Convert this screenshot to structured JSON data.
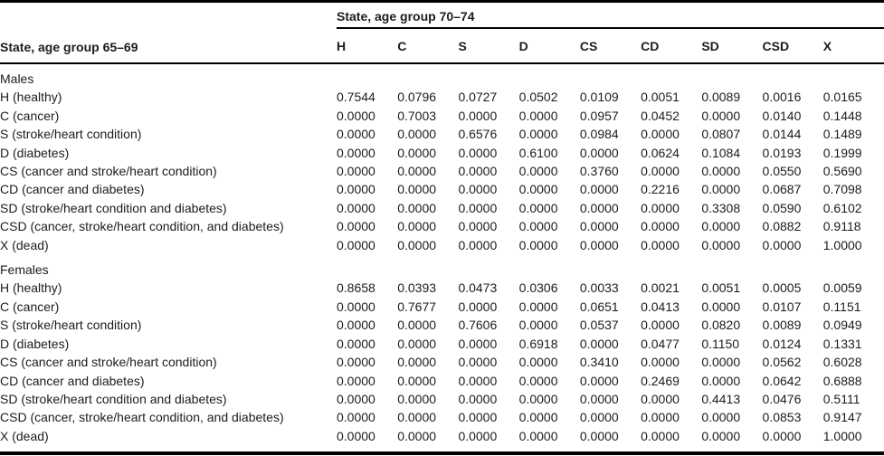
{
  "chart_data": {
    "type": "table",
    "row_group_header": "State, age group 65–69",
    "col_group_header": "State, age group 70–74",
    "columns": [
      "H",
      "C",
      "S",
      "D",
      "CS",
      "CD",
      "SD",
      "CSD",
      "X"
    ],
    "sections": [
      {
        "label": "Males",
        "rows": [
          {
            "label": "H (healthy)",
            "values": [
              "0.7544",
              "0.0796",
              "0.0727",
              "0.0502",
              "0.0109",
              "0.0051",
              "0.0089",
              "0.0016",
              "0.0165"
            ]
          },
          {
            "label": "C (cancer)",
            "values": [
              "0.0000",
              "0.7003",
              "0.0000",
              "0.0000",
              "0.0957",
              "0.0452",
              "0.0000",
              "0.0140",
              "0.1448"
            ]
          },
          {
            "label": "S (stroke/heart condition)",
            "values": [
              "0.0000",
              "0.0000",
              "0.6576",
              "0.0000",
              "0.0984",
              "0.0000",
              "0.0807",
              "0.0144",
              "0.1489"
            ]
          },
          {
            "label": "D (diabetes)",
            "values": [
              "0.0000",
              "0.0000",
              "0.0000",
              "0.6100",
              "0.0000",
              "0.0624",
              "0.1084",
              "0.0193",
              "0.1999"
            ]
          },
          {
            "label": "CS (cancer and stroke/heart condition)",
            "values": [
              "0.0000",
              "0.0000",
              "0.0000",
              "0.0000",
              "0.3760",
              "0.0000",
              "0.0000",
              "0.0550",
              "0.5690"
            ]
          },
          {
            "label": "CD (cancer and diabetes)",
            "values": [
              "0.0000",
              "0.0000",
              "0.0000",
              "0.0000",
              "0.0000",
              "0.2216",
              "0.0000",
              "0.0687",
              "0.7098"
            ]
          },
          {
            "label": "SD (stroke/heart condition and diabetes)",
            "values": [
              "0.0000",
              "0.0000",
              "0.0000",
              "0.0000",
              "0.0000",
              "0.0000",
              "0.3308",
              "0.0590",
              "0.6102"
            ]
          },
          {
            "label": "CSD (cancer, stroke/heart condition, and diabetes)",
            "values": [
              "0.0000",
              "0.0000",
              "0.0000",
              "0.0000",
              "0.0000",
              "0.0000",
              "0.0000",
              "0.0882",
              "0.9118"
            ]
          },
          {
            "label": "X (dead)",
            "values": [
              "0.0000",
              "0.0000",
              "0.0000",
              "0.0000",
              "0.0000",
              "0.0000",
              "0.0000",
              "0.0000",
              "1.0000"
            ]
          }
        ]
      },
      {
        "label": "Females",
        "rows": [
          {
            "label": "H (healthy)",
            "values": [
              "0.8658",
              "0.0393",
              "0.0473",
              "0.0306",
              "0.0033",
              "0.0021",
              "0.0051",
              "0.0005",
              "0.0059"
            ]
          },
          {
            "label": "C (cancer)",
            "values": [
              "0.0000",
              "0.7677",
              "0.0000",
              "0.0000",
              "0.0651",
              "0.0413",
              "0.0000",
              "0.0107",
              "0.1151"
            ]
          },
          {
            "label": "S (stroke/heart condition)",
            "values": [
              "0.0000",
              "0.0000",
              "0.7606",
              "0.0000",
              "0.0537",
              "0.0000",
              "0.0820",
              "0.0089",
              "0.0949"
            ]
          },
          {
            "label": "D (diabetes)",
            "values": [
              "0.0000",
              "0.0000",
              "0.0000",
              "0.6918",
              "0.0000",
              "0.0477",
              "0.1150",
              "0.0124",
              "0.1331"
            ]
          },
          {
            "label": "CS (cancer and stroke/heart condition)",
            "values": [
              "0.0000",
              "0.0000",
              "0.0000",
              "0.0000",
              "0.3410",
              "0.0000",
              "0.0000",
              "0.0562",
              "0.6028"
            ]
          },
          {
            "label": "CD (cancer and diabetes)",
            "values": [
              "0.0000",
              "0.0000",
              "0.0000",
              "0.0000",
              "0.0000",
              "0.2469",
              "0.0000",
              "0.0642",
              "0.6888"
            ]
          },
          {
            "label": "SD (stroke/heart condition and diabetes)",
            "values": [
              "0.0000",
              "0.0000",
              "0.0000",
              "0.0000",
              "0.0000",
              "0.0000",
              "0.4413",
              "0.0476",
              "0.5111"
            ]
          },
          {
            "label": "CSD (cancer, stroke/heart condition, and diabetes)",
            "values": [
              "0.0000",
              "0.0000",
              "0.0000",
              "0.0000",
              "0.0000",
              "0.0000",
              "0.0000",
              "0.0853",
              "0.9147"
            ]
          },
          {
            "label": "X (dead)",
            "values": [
              "0.0000",
              "0.0000",
              "0.0000",
              "0.0000",
              "0.0000",
              "0.0000",
              "0.0000",
              "0.0000",
              "1.0000"
            ]
          }
        ]
      }
    ]
  }
}
